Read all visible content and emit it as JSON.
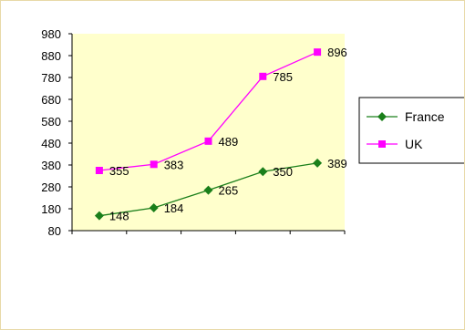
{
  "chart_data": {
    "type": "line",
    "title": "",
    "xlabel": "",
    "ylabel": "",
    "categories": [
      "",
      "",
      "",
      "",
      ""
    ],
    "ylim": [
      80,
      980
    ],
    "yticks": [
      80,
      180,
      280,
      380,
      480,
      580,
      680,
      780,
      880,
      980
    ],
    "grid": false,
    "legend_position": "right",
    "plot_background": "#ffffcc",
    "series": [
      {
        "name": "France",
        "values": [
          148,
          184,
          265,
          350,
          389
        ],
        "color": "#1a7f1a",
        "marker": "diamond"
      },
      {
        "name": "UK",
        "values": [
          355,
          383,
          489,
          785,
          896
        ],
        "color": "#ff00ff",
        "marker": "square"
      }
    ]
  }
}
